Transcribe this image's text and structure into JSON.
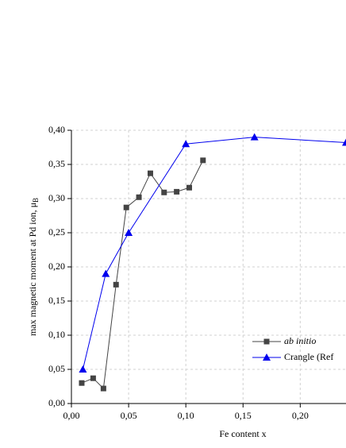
{
  "chart_data": {
    "type": "line",
    "x_label": "Fe content x",
    "y_label": {
      "text": "max magnetic moment at Pd ion,  μ",
      "subscript": "B"
    },
    "series": [
      {
        "name": "ab initio",
        "color": "#444444",
        "marker": "square",
        "x": [
          0.009,
          0.019,
          0.028,
          0.039,
          0.048,
          0.059,
          0.069,
          0.081,
          0.092,
          0.103,
          0.115
        ],
        "values": [
          0.03,
          0.037,
          0.022,
          0.174,
          0.287,
          0.302,
          0.337,
          0.309,
          0.31,
          0.316,
          0.356
        ]
      },
      {
        "name": "Crangle (Ref",
        "color": "#0000ee",
        "marker": "triangle",
        "x": [
          0.01,
          0.03,
          0.05,
          0.1,
          0.16,
          0.24
        ],
        "values": [
          0.05,
          0.19,
          0.25,
          0.38,
          0.39,
          0.382
        ]
      }
    ],
    "xlim": [
      0,
      0.24
    ],
    "ylim": [
      0,
      0.4
    ],
    "xticks": [
      {
        "value": 0,
        "label": "0,00"
      },
      {
        "value": 0.05,
        "label": "0,05"
      },
      {
        "value": 0.1,
        "label": "0,10"
      },
      {
        "value": 0.15,
        "label": "0,15"
      },
      {
        "value": 0.2,
        "label": "0,20"
      }
    ],
    "yticks": [
      {
        "value": 0,
        "label": "0,00"
      },
      {
        "value": 0.05,
        "label": "0,05"
      },
      {
        "value": 0.1,
        "label": "0,10"
      },
      {
        "value": 0.15,
        "label": "0,15"
      },
      {
        "value": 0.2,
        "label": "0,20"
      },
      {
        "value": 0.25,
        "label": "0,25"
      },
      {
        "value": 0.3,
        "label": "0,30"
      },
      {
        "value": 0.35,
        "label": "0,35"
      },
      {
        "value": 0.4,
        "label": "0,40"
      }
    ],
    "grid": true
  }
}
